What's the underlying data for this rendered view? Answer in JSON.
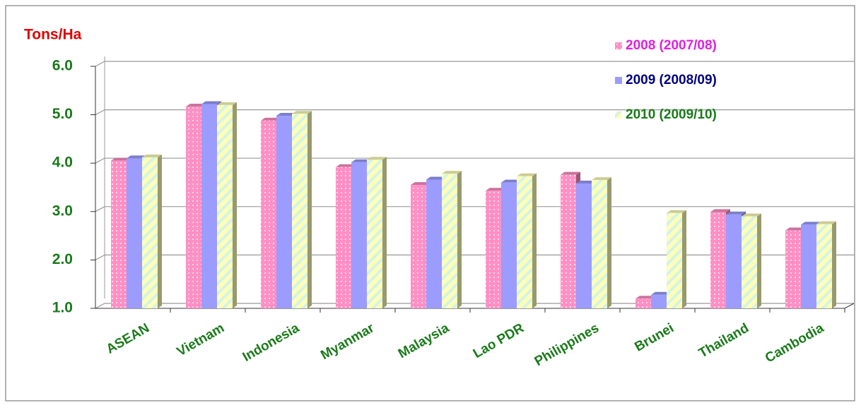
{
  "chart_data": {
    "type": "bar",
    "title": "Tons/Ha",
    "categories": [
      "ASEAN",
      "Vietnam",
      "Indonesia",
      "Myanmar",
      "Malaysia",
      "Lao PDR",
      "Philippines",
      "Brunei",
      "Thailand",
      "Cambodia"
    ],
    "series": [
      {
        "name": "2008 (2007/08)",
        "color": "#ff8fc4",
        "label_color": "#e020e0",
        "values": [
          4.05,
          5.17,
          4.88,
          3.92,
          3.55,
          3.43,
          3.76,
          1.2,
          2.99,
          2.61
        ]
      },
      {
        "name": "2009 (2008/09)",
        "color": "#9c9cff",
        "label_color": "#000080",
        "values": [
          4.1,
          5.22,
          4.98,
          4.02,
          3.66,
          3.6,
          3.58,
          1.28,
          2.94,
          2.73
        ]
      },
      {
        "name": "2010 (2009/10)",
        "color": "#ffffb8",
        "label_color": "#1a7a1a",
        "values": [
          4.12,
          5.2,
          5.02,
          4.07,
          3.78,
          3.73,
          3.65,
          2.97,
          2.9,
          2.74
        ]
      }
    ],
    "ylim": [
      1,
      6
    ],
    "yticks": [
      {
        "value": 1,
        "label": "1.0"
      },
      {
        "value": 2,
        "label": "2.0"
      },
      {
        "value": 3,
        "label": "3.0"
      },
      {
        "value": 4,
        "label": "4.0"
      },
      {
        "value": 5,
        "label": "5.0"
      },
      {
        "value": 6,
        "label": "6.0"
      }
    ],
    "grid": true,
    "legend": "upper right"
  }
}
